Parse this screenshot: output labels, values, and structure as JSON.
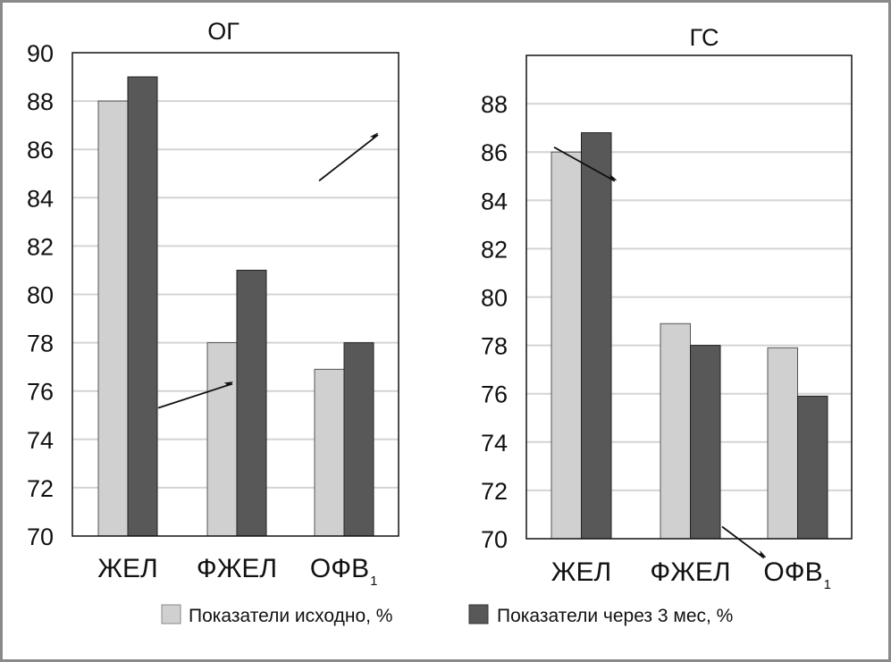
{
  "colors": {
    "baseline": "#d0d0d0",
    "after3m": "#585858",
    "grid": "#d4d4d4",
    "frame": "#8a8a8a",
    "axis": "#111111"
  },
  "legend": [
    {
      "label": "Показатели исходно, %",
      "series": "baseline"
    },
    {
      "label": "Показатели через 3 мес, %",
      "series": "after3m"
    }
  ],
  "chart_data": [
    {
      "type": "bar",
      "title": "ОГ",
      "categories": [
        {
          "main": "ЖЕЛ",
          "sub": ""
        },
        {
          "main": "ФЖЕЛ",
          "sub": ""
        },
        {
          "main": "ОФВ",
          "sub": "1"
        }
      ],
      "series": [
        {
          "name": "Показатели исходно, %",
          "key": "baseline",
          "values": [
            88.0,
            78.0,
            76.9
          ]
        },
        {
          "name": "Показатели через 3 мес, %",
          "key": "after3m",
          "values": [
            89.0,
            81.0,
            78.0
          ]
        }
      ],
      "xlabel": "",
      "ylabel": "",
      "ylim": [
        70,
        90
      ],
      "yticks": [
        70,
        72,
        74,
        76,
        78,
        80,
        82,
        84,
        86,
        88,
        90
      ],
      "grid": true,
      "annotations": [
        {
          "type": "arrow",
          "from": [
            "ЖЕЛ",
            75.3
          ],
          "to": [
            "ФЖЕЛ",
            76.3
          ],
          "desc": "increase"
        },
        {
          "type": "arrow",
          "from": [
            "ОФВ1",
            84.7
          ],
          "to": [
            "ОФВ1",
            86.6
          ],
          "desc": "increase"
        }
      ]
    },
    {
      "type": "bar",
      "title": "ГС",
      "categories": [
        {
          "main": "ЖЕЛ",
          "sub": ""
        },
        {
          "main": "ФЖЕЛ",
          "sub": ""
        },
        {
          "main": "ОФВ",
          "sub": "1"
        }
      ],
      "series": [
        {
          "name": "Показатели исходно, %",
          "key": "baseline",
          "values": [
            86.0,
            78.9,
            77.9
          ]
        },
        {
          "name": "Показатели через 3 мес, %",
          "key": "after3m",
          "values": [
            86.8,
            78.0,
            75.9
          ]
        }
      ],
      "xlabel": "",
      "ylabel": "",
      "ylim": [
        70,
        90
      ],
      "yticks": [
        70,
        72,
        74,
        76,
        78,
        80,
        82,
        84,
        86,
        88
      ],
      "grid": true,
      "annotations": [
        {
          "type": "arrow",
          "from": [
            "ЖЕЛ",
            86.2
          ],
          "to": [
            "ЖЕЛ",
            84.8
          ],
          "desc": "decrease"
        },
        {
          "type": "arrow",
          "from": [
            "ФЖЕЛ",
            70.5
          ],
          "to": [
            "ОФВ1",
            69.2
          ],
          "desc": "decrease"
        }
      ]
    }
  ]
}
